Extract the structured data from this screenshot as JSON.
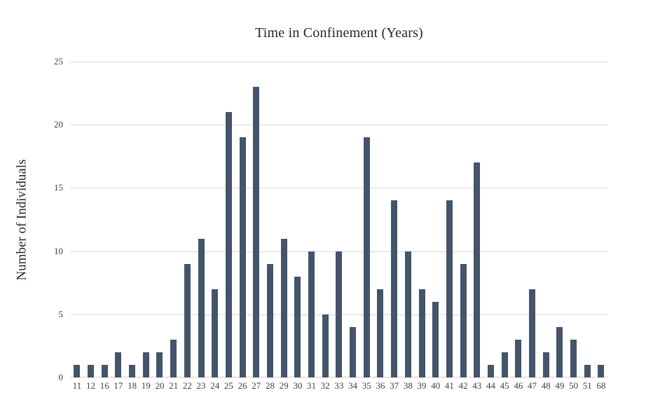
{
  "chart_data": {
    "type": "bar",
    "title": "Time in Confinement (Years)",
    "xlabel": "",
    "ylabel": "Number of Individuals",
    "categories": [
      "11",
      "12",
      "16",
      "17",
      "18",
      "19",
      "20",
      "21",
      "22",
      "23",
      "24",
      "25",
      "26",
      "27",
      "28",
      "29",
      "30",
      "31",
      "32",
      "33",
      "34",
      "35",
      "36",
      "37",
      "38",
      "39",
      "40",
      "41",
      "42",
      "43",
      "44",
      "45",
      "46",
      "47",
      "48",
      "49",
      "50",
      "51",
      "68"
    ],
    "values": [
      1,
      1,
      1,
      2,
      1,
      2,
      2,
      3,
      9,
      11,
      7,
      21,
      19,
      23,
      9,
      11,
      8,
      10,
      5,
      10,
      4,
      19,
      7,
      14,
      10,
      7,
      6,
      14,
      9,
      17,
      1,
      2,
      3,
      7,
      2,
      4,
      3,
      1,
      1
    ],
    "ylim": [
      0,
      25
    ],
    "yticks": [
      0,
      5,
      10,
      15,
      20,
      25
    ],
    "grid": true,
    "legend": false,
    "bar_color": "#44546a",
    "gridline_color": "#d9d9d9",
    "text_color": "#404040"
  }
}
